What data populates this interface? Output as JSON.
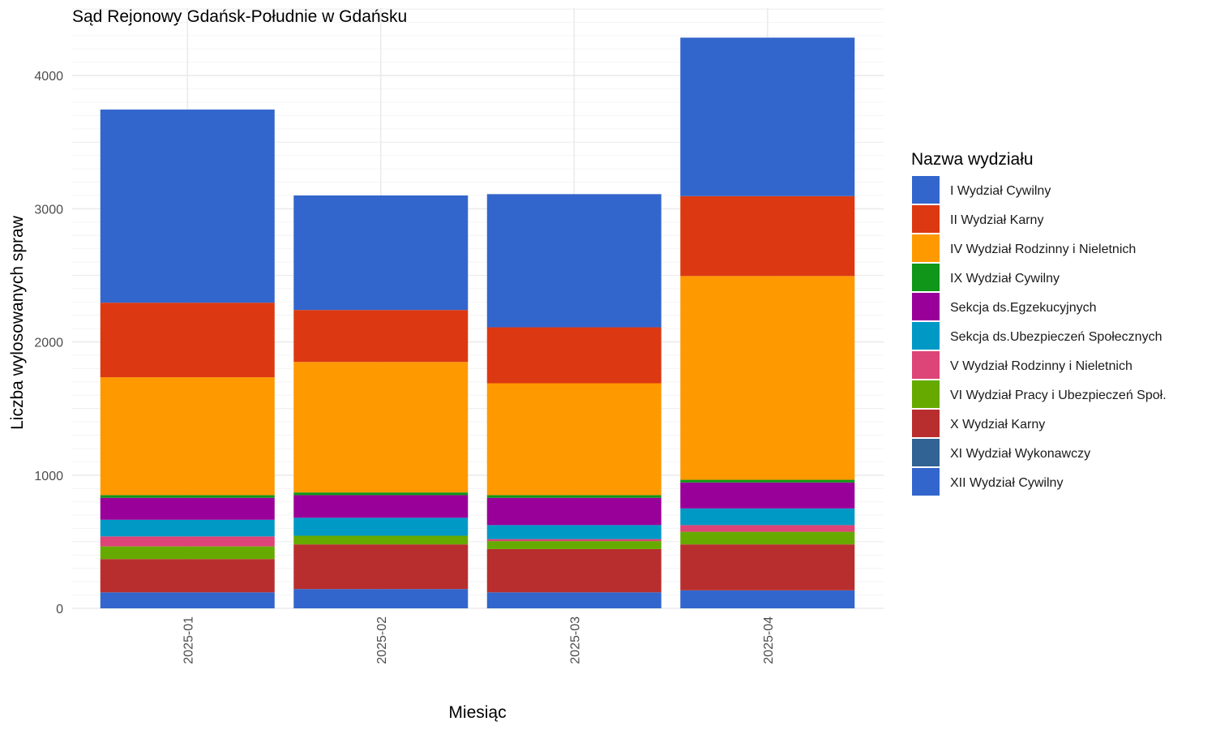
{
  "chart_data": {
    "type": "bar",
    "stacked": true,
    "title": "Sąd Rejonowy Gdańsk-Południe w Gdańsku",
    "xlabel": "Miesiąc",
    "ylabel": "Liczba wylosowanych spraw",
    "categories": [
      "2025-01",
      "2025-02",
      "2025-03",
      "2025-04"
    ],
    "ylim": [
      0,
      4500
    ],
    "yticks": [
      0,
      1000,
      2000,
      3000,
      4000
    ],
    "grid": true,
    "legend": {
      "title": "Nazwa wydziału",
      "position": "right"
    },
    "series": [
      {
        "name": "I Wydział Cywilny",
        "color": "#3366CC",
        "values": [
          1450,
          860,
          1000,
          1190
        ]
      },
      {
        "name": "II Wydział Karny",
        "color": "#DC3912",
        "values": [
          560,
          390,
          420,
          600
        ]
      },
      {
        "name": "IV Wydział Rodzinny i Nieletnich",
        "color": "#FF9900",
        "values": [
          885,
          980,
          840,
          1530
        ]
      },
      {
        "name": "IX Wydział Cywilny",
        "color": "#109618",
        "values": [
          20,
          20,
          20,
          20
        ]
      },
      {
        "name": "Sekcja ds.Egzekucyjnych",
        "color": "#990099",
        "values": [
          165,
          170,
          205,
          195
        ]
      },
      {
        "name": "Sekcja ds.Ubezpieczeń Społecznych",
        "color": "#0099C6",
        "values": [
          125,
          135,
          105,
          125
        ]
      },
      {
        "name": "V Wydział Rodzinny i Nieletnich",
        "color": "#DD4477",
        "values": [
          75,
          0,
          15,
          50
        ]
      },
      {
        "name": "VI Wydział Pracy i Ubezpieczeń Społ.",
        "color": "#66AA00",
        "values": [
          95,
          65,
          60,
          95
        ]
      },
      {
        "name": "X Wydział Karny",
        "color": "#B82E2E",
        "values": [
          250,
          335,
          325,
          345
        ]
      },
      {
        "name": "XI Wydział Wykonawczy",
        "color": "#316395",
        "values": [
          0,
          0,
          0,
          0
        ]
      },
      {
        "name": "XII Wydział Cywilny",
        "color": "#3366CC",
        "values": [
          120,
          145,
          120,
          135
        ]
      }
    ]
  }
}
